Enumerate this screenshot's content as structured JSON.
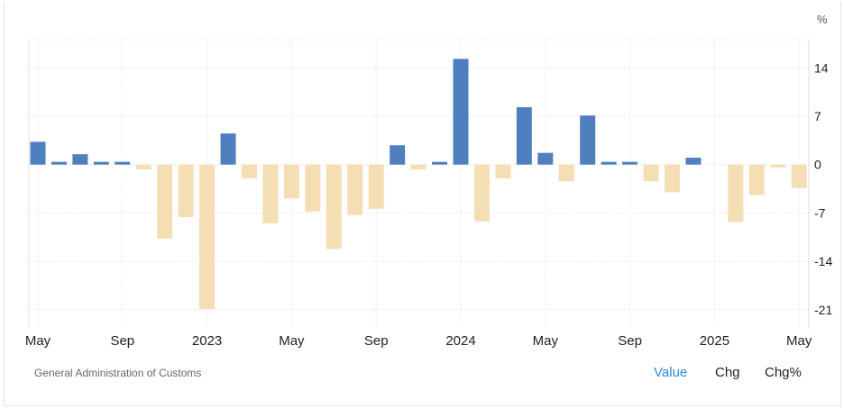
{
  "chart_data": {
    "type": "bar",
    "unit": "%",
    "x": [
      "May 2022",
      "Jun 2022",
      "Jul 2022",
      "Aug 2022",
      "Sep 2022",
      "Oct 2022",
      "Nov 2022",
      "Dec 2022",
      "Jan 2023",
      "Feb 2023",
      "Mar 2023",
      "Apr 2023",
      "May 2023",
      "Jun 2023",
      "Jul 2023",
      "Aug 2023",
      "Sep 2023",
      "Oct 2023",
      "Nov 2023",
      "Dec 2023",
      "Jan 2024",
      "Feb 2024",
      "Mar 2024",
      "Apr 2024",
      "May 2024",
      "Jun 2024",
      "Jul 2024",
      "Aug 2024",
      "Sep 2024",
      "Oct 2024",
      "Nov 2024",
      "Dec 2024",
      "Jan 2025",
      "Feb 2025",
      "Mar 2025",
      "Apr 2025",
      "May 2025"
    ],
    "values": [
      3.3,
      0.4,
      1.5,
      0.4,
      0.4,
      -0.7,
      -10.7,
      -7.6,
      -20.9,
      4.5,
      -2.0,
      -8.5,
      -4.9,
      -6.8,
      -12.2,
      -7.3,
      -6.4,
      2.8,
      -0.7,
      0.4,
      15.3,
      -8.2,
      -2.0,
      8.3,
      1.7,
      -2.4,
      7.1,
      0.4,
      0.4,
      -2.4,
      -4.0,
      1.0,
      0,
      -8.3,
      -4.4,
      -0.4,
      -3.4
    ],
    "x_tick_labels": [
      "May",
      "Sep",
      "2023",
      "May",
      "Sep",
      "2024",
      "May",
      "Sep",
      "2025",
      "May"
    ],
    "x_tick_indices": [
      0,
      4,
      8,
      12,
      16,
      20,
      24,
      28,
      32,
      36
    ],
    "y_ticks": [
      14,
      7,
      0,
      -7,
      -14,
      -21
    ],
    "ylim": [
      -23,
      18
    ],
    "grid": true,
    "colors": {
      "positive": "#4e80bf",
      "negative": "#f4deb3"
    }
  },
  "unit_label": "%",
  "source": "General Administration of Customs",
  "tabs": [
    {
      "label": "Value",
      "active": true
    },
    {
      "label": "Chg",
      "active": false
    },
    {
      "label": "Chg%",
      "active": false
    }
  ],
  "accent": "#2a8ae0"
}
